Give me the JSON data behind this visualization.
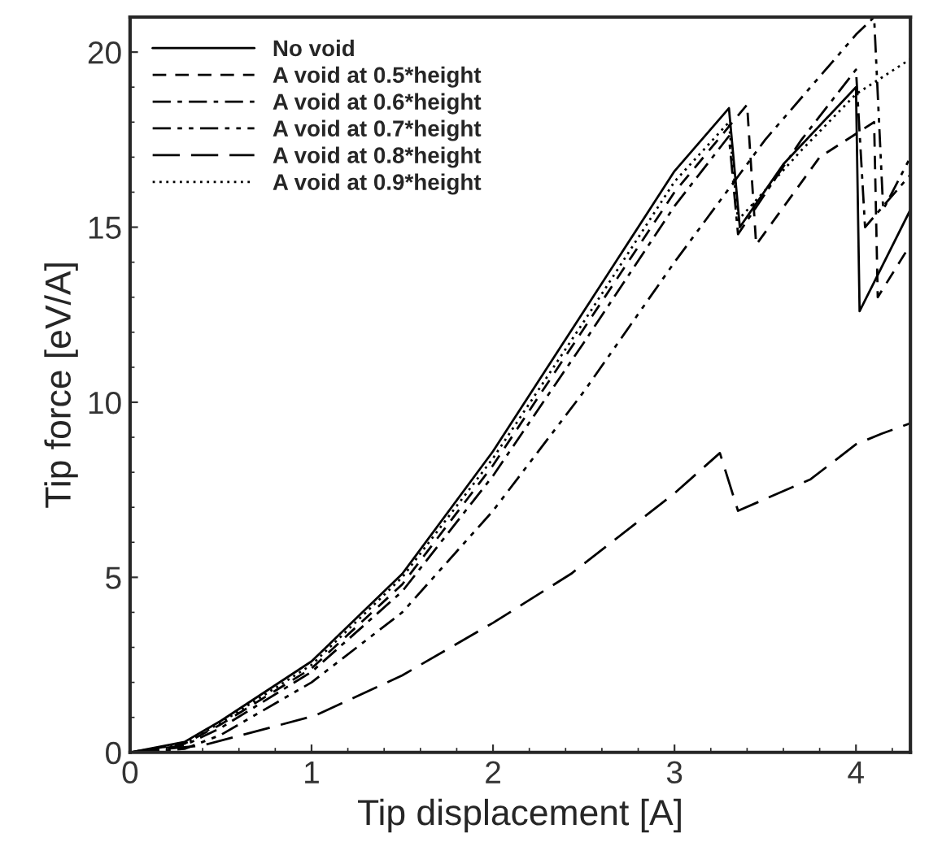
{
  "chart_data": {
    "type": "line",
    "xlabel": "Tip displacement [A]",
    "ylabel": "Tip force [eV/A]",
    "xlim": [
      0,
      4.3
    ],
    "ylim": [
      0,
      21
    ],
    "xticks": [
      0,
      1,
      2,
      3,
      4
    ],
    "yticks": [
      0,
      5,
      10,
      15,
      20
    ],
    "grid": false,
    "legend": "top left",
    "marker": "none",
    "series": [
      {
        "name": "No void",
        "color": "#000000",
        "line_style": "solid",
        "x": [
          0,
          0.3,
          0.5,
          1,
          1.5,
          2,
          2.5,
          3,
          3.3,
          3.36,
          3.6,
          4.0,
          4.02,
          4.3
        ],
        "values": [
          0,
          0.3,
          0.9,
          2.6,
          5.1,
          8.6,
          12.6,
          16.6,
          18.4,
          15.0,
          16.8,
          19.0,
          12.6,
          15.5
        ]
      },
      {
        "name": "A void at 0.5*height",
        "color": "#000000",
        "line_style": "dashed",
        "x": [
          0,
          0.3,
          0.5,
          1,
          1.5,
          2,
          2.5,
          3,
          3.4,
          3.45,
          3.8,
          4.1,
          4.12,
          4.3
        ],
        "values": [
          0,
          0.25,
          0.8,
          2.4,
          4.8,
          8.2,
          12.1,
          16.0,
          18.5,
          14.5,
          17.0,
          18.0,
          13.0,
          14.5
        ]
      },
      {
        "name": "A void at 0.6*height",
        "color": "#000000",
        "line_style": "dashdot",
        "x": [
          0,
          0.3,
          0.5,
          1,
          1.5,
          2,
          2.5,
          3,
          3.3,
          3.35,
          3.7,
          4.0,
          4.05,
          4.3
        ],
        "values": [
          0,
          0.2,
          0.7,
          2.3,
          4.6,
          7.9,
          11.7,
          15.6,
          17.6,
          14.8,
          17.5,
          19.5,
          15.0,
          16.5
        ]
      },
      {
        "name": "A void at 0.7*height",
        "color": "#000000",
        "line_style": "dashdotdot",
        "x": [
          0,
          0.3,
          0.5,
          1,
          1.5,
          2,
          2.5,
          3,
          3.5,
          4.0,
          4.1,
          4.15,
          4.3
        ],
        "values": [
          0,
          0.1,
          0.5,
          2.0,
          4.0,
          6.9,
          10.3,
          14.0,
          17.5,
          20.5,
          21.0,
          15.5,
          17.0
        ]
      },
      {
        "name": "A void at 0.8*height",
        "color": "#000000",
        "line_style": "longdash",
        "x": [
          0,
          0.4,
          1.02,
          1.5,
          2.0,
          2.43,
          3.0,
          3.25,
          3.35,
          3.75,
          4.0,
          4.14,
          4.3
        ],
        "values": [
          0,
          0.2,
          1.05,
          2.2,
          3.7,
          5.1,
          7.4,
          8.55,
          6.9,
          7.8,
          8.8,
          9.1,
          9.4
        ]
      },
      {
        "name": "A void at 0.9*height",
        "color": "#000000",
        "line_style": "dotted",
        "x": [
          0,
          0.3,
          0.5,
          1,
          1.5,
          2,
          2.5,
          3,
          3.3,
          3.35,
          3.7,
          4.0,
          4.3
        ],
        "values": [
          0,
          0.25,
          0.85,
          2.5,
          5.0,
          8.4,
          12.3,
          16.3,
          18.0,
          15.2,
          17.2,
          18.8,
          19.8
        ]
      }
    ]
  }
}
